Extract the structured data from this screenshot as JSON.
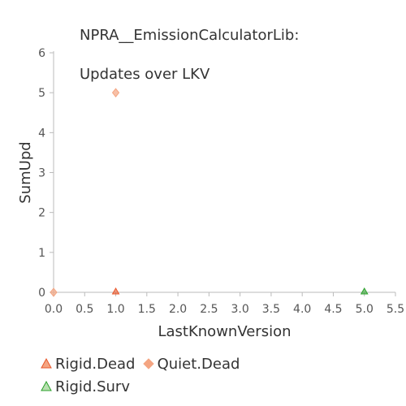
{
  "chart_data": {
    "type": "scatter",
    "title_lines": [
      "NPRA__EmissionCalculatorLib:",
      "Updates over LKV"
    ],
    "xlabel": "LastKnownVersion",
    "ylabel": "SumUpd",
    "xlim": [
      0,
      5.5
    ],
    "ylim": [
      0,
      6
    ],
    "x_ticks": [
      "0.0",
      "0.5",
      "1.0",
      "1.5",
      "2.0",
      "2.5",
      "3.0",
      "3.5",
      "4.0",
      "4.5",
      "5.0",
      "5.5"
    ],
    "y_ticks": [
      "0",
      "1",
      "2",
      "3",
      "4",
      "5",
      "6"
    ],
    "grid": false,
    "legend_position": "bottom",
    "series": [
      {
        "name": "Rigid.Dead",
        "marker": "triangle",
        "color": "#e8562a",
        "points": [
          {
            "x": 1.0,
            "y": 0
          }
        ]
      },
      {
        "name": "Quiet.Dead",
        "marker": "diamond",
        "color": "#f4a582",
        "points": [
          {
            "x": 1.0,
            "y": 5
          },
          {
            "x": 0.0,
            "y": 0
          }
        ]
      },
      {
        "name": "Rigid.Surv",
        "marker": "triangle",
        "color": "#2ca02c",
        "points": [
          {
            "x": 5.0,
            "y": 0
          }
        ]
      }
    ]
  }
}
